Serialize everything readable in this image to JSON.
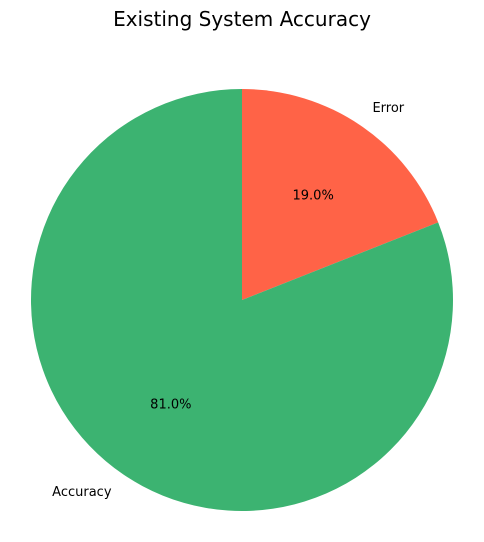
{
  "chart_data": {
    "type": "pie",
    "title": "Existing System Accuracy",
    "slices": [
      {
        "label": "Error",
        "value": 19.0,
        "pct_label": "19.0%",
        "color": "#ff6347"
      },
      {
        "label": "Accuracy",
        "value": 81.0,
        "pct_label": "81.0%",
        "color": "#3cb371"
      }
    ],
    "start_angle_deg": 90,
    "direction": "clockwise",
    "legend": "none"
  }
}
